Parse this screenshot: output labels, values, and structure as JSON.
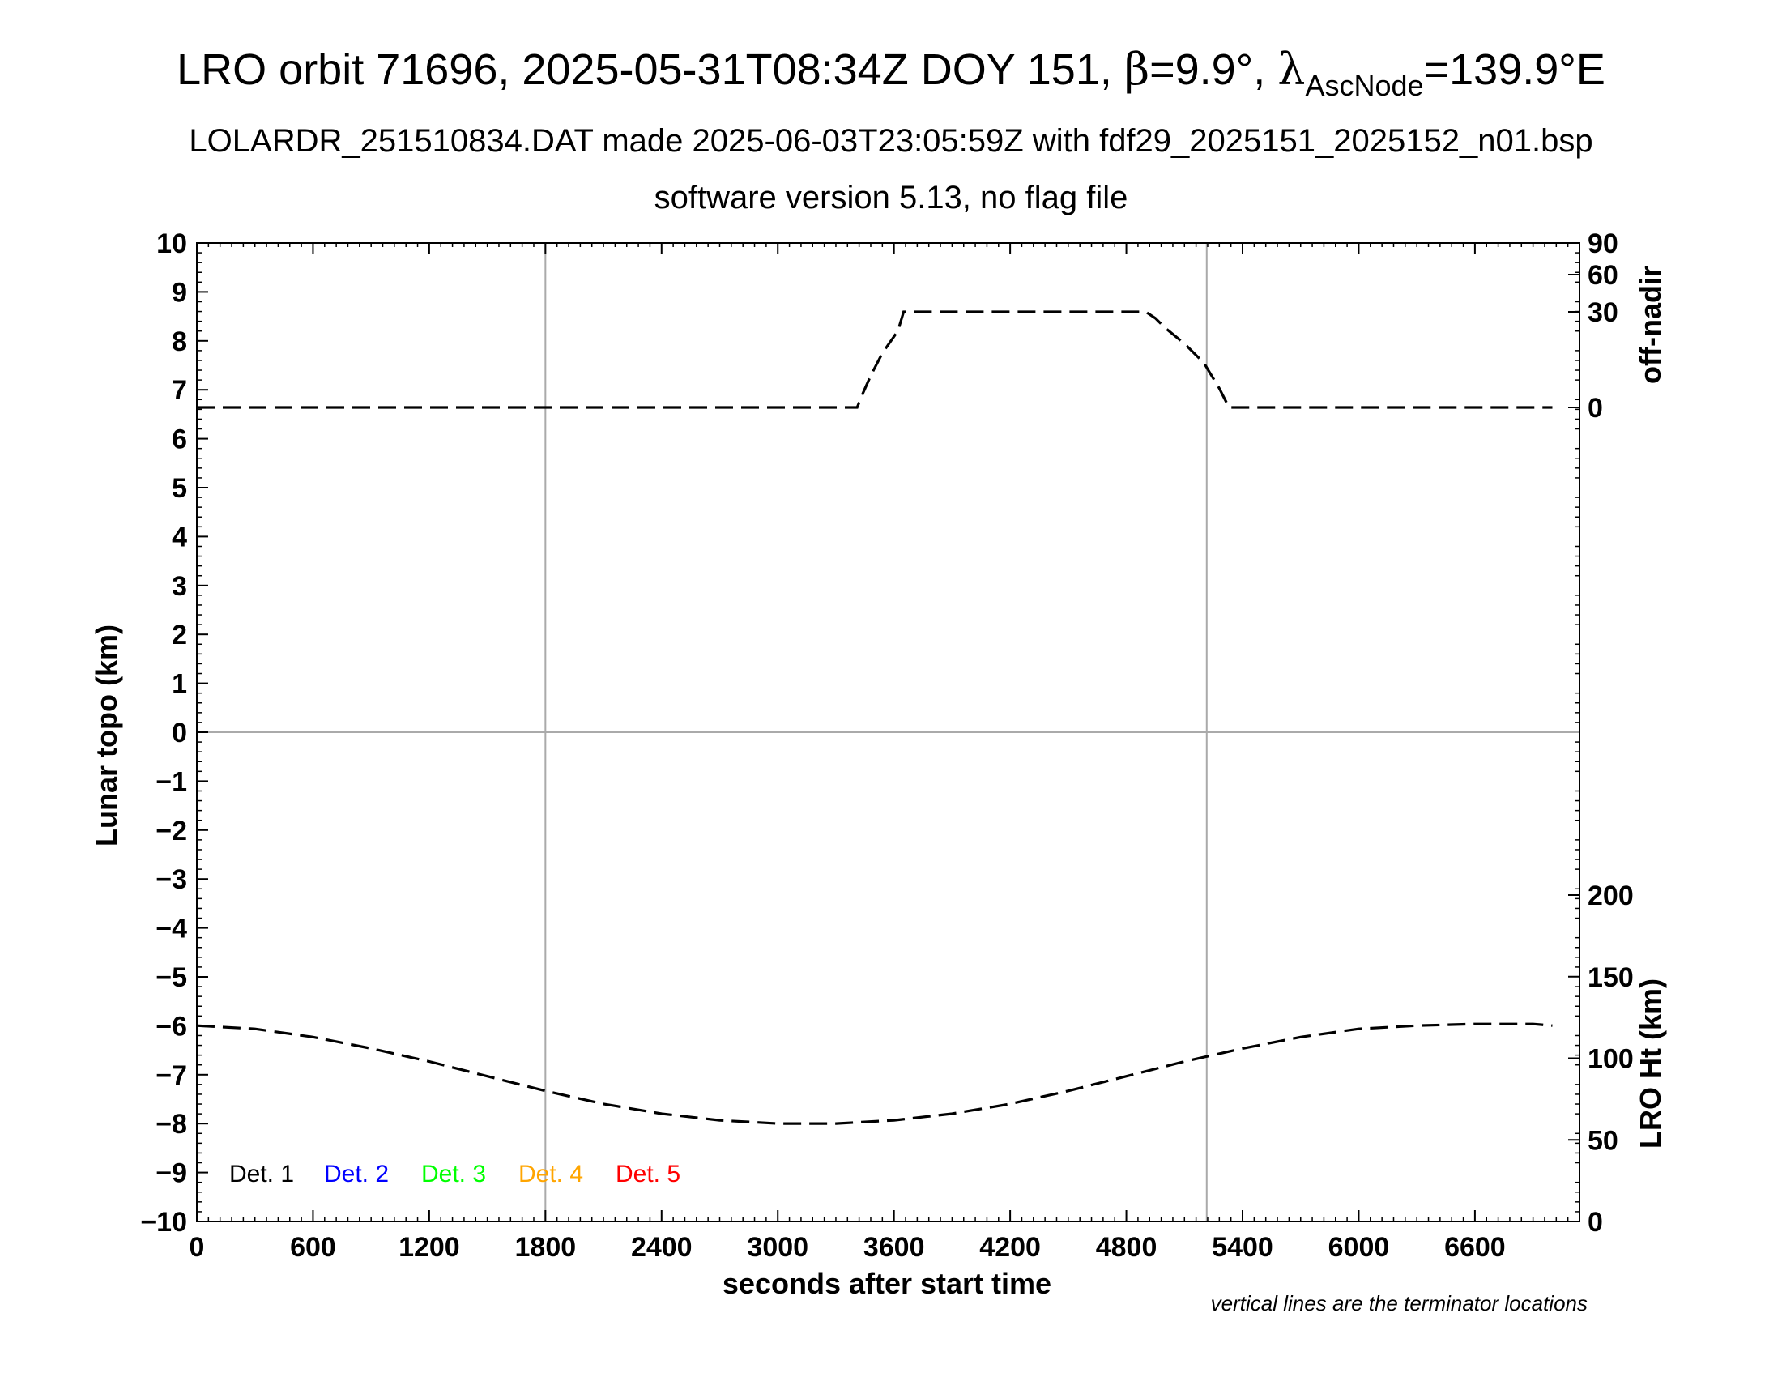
{
  "header": {
    "title_prefix": "LRO orbit 71696, 2025-05-31T08:34Z DOY 151, ",
    "beta_symbol": "β",
    "beta_value": "=9.9°, ",
    "lambda_symbol": "λ",
    "lambda_subscript": "AscNode",
    "lambda_value": "=139.9°E",
    "subtitle": "LOLARDR_251510834.DAT made 2025-06-03T23:05:59Z with fdf29_2025151_2025152_n01.bsp",
    "subtitle2": "software version 5.13, no flag file"
  },
  "footnote": "vertical lines are the terminator locations",
  "legend": [
    {
      "label": "Det. 1",
      "color": "#000000"
    },
    {
      "label": "Det. 2",
      "color": "#0000ff"
    },
    {
      "label": "Det. 3",
      "color": "#00ff00"
    },
    {
      "label": "Det. 4",
      "color": "#ffa500"
    },
    {
      "label": "Det. 5",
      "color": "#ff0000"
    }
  ],
  "chart_data": {
    "type": "line",
    "xlabel": "seconds after start time",
    "ylabel": "Lunar topo (km)",
    "xlim": [
      0,
      7140
    ],
    "ylim": [
      -10,
      10
    ],
    "xticks": [
      0,
      600,
      1200,
      1800,
      2400,
      3000,
      3600,
      4200,
      4800,
      5400,
      6000,
      6600
    ],
    "yticks": [
      10,
      9,
      8,
      7,
      6,
      5,
      4,
      3,
      2,
      1,
      0,
      -1,
      -2,
      -3,
      -4,
      -5,
      -6,
      -7,
      -8,
      -9,
      -10
    ],
    "ytick_labels": [
      "10",
      "9",
      "8",
      "7",
      "6",
      "5",
      "4",
      "3",
      "2",
      "1",
      "0",
      "−1",
      "−2",
      "−3",
      "−4",
      "−5",
      "−6",
      "−7",
      "−8",
      "−9",
      "−10"
    ],
    "terminator_lines_x": [
      1800,
      5215
    ],
    "zero_line_y": 0,
    "right_axis_top": {
      "label": "off-nadir",
      "ticks": [
        0,
        30,
        60,
        90
      ],
      "tick_labels": [
        "0",
        "30",
        "60",
        "90"
      ]
    },
    "right_axis_bottom": {
      "label": "LRO Ht (km)",
      "ticks": [
        0,
        50,
        100,
        150,
        200
      ],
      "tick_labels": [
        "0",
        "50",
        "100",
        "150",
        "200"
      ]
    },
    "series": [
      {
        "axis": "off-nadir",
        "style": "dashed",
        "color": "#000000",
        "x": [
          0,
          3400,
          3410,
          3440,
          3480,
          3540,
          3620,
          3650,
          4200,
          4900,
          4950,
          5000,
          5100,
          5200,
          5280,
          5330,
          5370,
          5400,
          7000
        ],
        "y": [
          0,
          0,
          0,
          4.5,
          10,
          17,
          24,
          30,
          30,
          30,
          28,
          25,
          20,
          14,
          6,
          0,
          0,
          0,
          0
        ]
      },
      {
        "axis": "LRO Ht (km)",
        "style": "dashed",
        "color": "#000000",
        "x": [
          0,
          300,
          600,
          900,
          1200,
          1500,
          1800,
          2100,
          2400,
          2700,
          3000,
          3300,
          3600,
          3900,
          4200,
          4500,
          4800,
          5100,
          5400,
          5700,
          6000,
          6300,
          6600,
          6900,
          7000
        ],
        "y": [
          120,
          118,
          113,
          106,
          98,
          89,
          80,
          72,
          66,
          62,
          60,
          60,
          62,
          66,
          72,
          80,
          89,
          98,
          106,
          113,
          118,
          120,
          121,
          121,
          120
        ]
      }
    ]
  }
}
